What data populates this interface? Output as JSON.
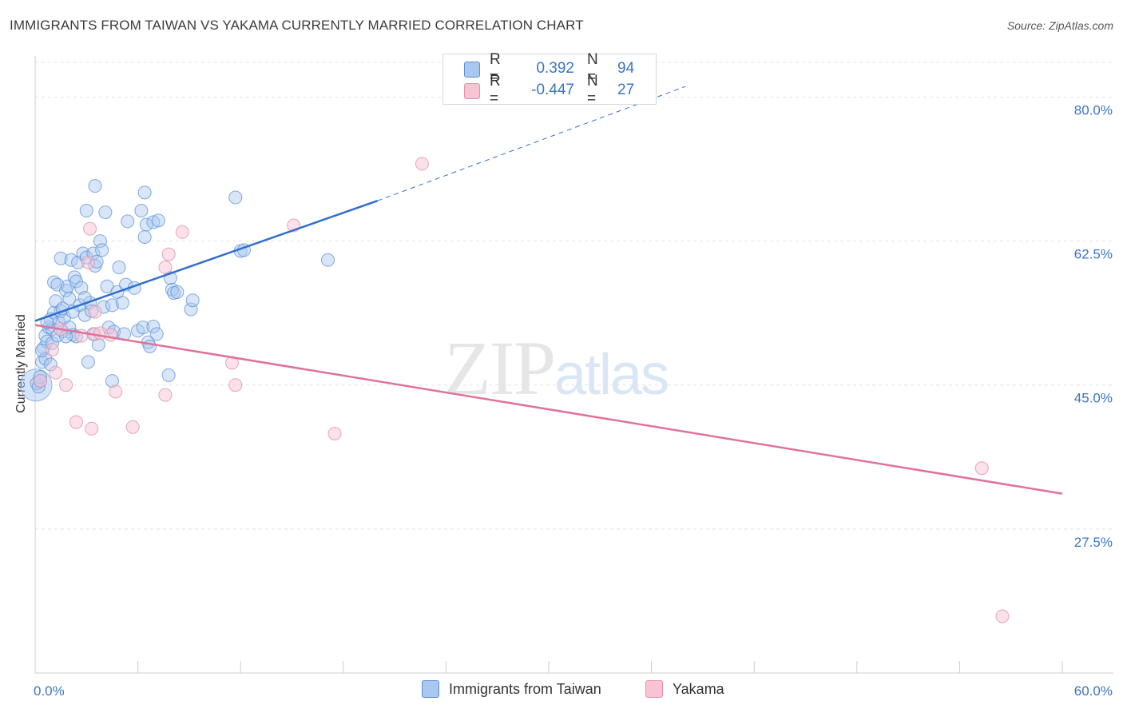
{
  "title": "IMMIGRANTS FROM TAIWAN VS YAKAMA CURRENTLY MARRIED CORRELATION CHART",
  "source": "Source: ZipAtlas.com",
  "watermark": {
    "zip": "ZIP",
    "atlas": "atlas"
  },
  "legend_top": {
    "rows": [
      {
        "r_label": "R =",
        "r_value": "0.392",
        "n_label": "N =",
        "n_value": "94"
      },
      {
        "r_label": "R =",
        "r_value": "-0.447",
        "n_label": "N =",
        "n_value": "27"
      }
    ]
  },
  "legend_bottom": [
    "Immigrants from Taiwan",
    "Yakama"
  ],
  "colors": {
    "blue_fill": "#a9c8f0",
    "blue_stroke": "#5b8fd6",
    "blue_line": "#2f6fcc",
    "pink_fill": "#f8c4d4",
    "pink_stroke": "#e690ab",
    "pink_line": "#e0729a",
    "tick_text": "#3a76c4",
    "grid": "#e4e4e4"
  },
  "chart_data": {
    "type": "scatter",
    "title": "IMMIGRANTS FROM TAIWAN VS YAKAMA CURRENTLY MARRIED CORRELATION CHART",
    "xlabel": "",
    "ylabel": "Currently Married",
    "xlim": [
      0,
      60
    ],
    "ylim": [
      10,
      85
    ],
    "x_tick_labels": [
      "0.0%",
      "60.0%"
    ],
    "y_ticks": [
      27.5,
      45.0,
      62.5,
      80.0
    ],
    "y_tick_labels": [
      "27.5%",
      "45.0%",
      "62.5%",
      "80.0%"
    ],
    "grid": true,
    "series": [
      {
        "name": "Immigrants from Taiwan",
        "r": 0.392,
        "n": 94,
        "trend": {
          "x_start": 0,
          "y_start": 52.8,
          "x_solid_end": 20,
          "y_solid_end": 67.4,
          "x_dash_end": 38,
          "y_dash_end": 81.3
        },
        "points": [
          [
            0.1,
            45.2
          ],
          [
            0.2,
            44.8
          ],
          [
            0.3,
            46.0
          ],
          [
            0.3,
            45.5
          ],
          [
            0.4,
            47.8
          ],
          [
            0.5,
            49.5
          ],
          [
            0.6,
            51.0
          ],
          [
            0.6,
            48.2
          ],
          [
            0.7,
            50.3
          ],
          [
            0.8,
            52.0
          ],
          [
            0.9,
            47.5
          ],
          [
            1.0,
            50.1
          ],
          [
            1.0,
            51.8
          ],
          [
            1.1,
            53.8
          ],
          [
            1.1,
            57.5
          ],
          [
            1.2,
            55.2
          ],
          [
            1.3,
            57.2
          ],
          [
            1.4,
            52.6
          ],
          [
            1.5,
            54.0
          ],
          [
            1.5,
            60.4
          ],
          [
            1.6,
            51.5
          ],
          [
            1.7,
            53.2
          ],
          [
            1.8,
            56.5
          ],
          [
            1.9,
            57.0
          ],
          [
            2.0,
            55.5
          ],
          [
            2.0,
            52.0
          ],
          [
            2.1,
            60.2
          ],
          [
            2.2,
            51.1
          ],
          [
            2.3,
            58.1
          ],
          [
            2.4,
            57.6
          ],
          [
            2.4,
            50.9
          ],
          [
            2.5,
            59.9
          ],
          [
            2.6,
            54.7
          ],
          [
            2.7,
            56.8
          ],
          [
            2.8,
            61.0
          ],
          [
            2.9,
            53.5
          ],
          [
            3.0,
            66.2
          ],
          [
            3.0,
            60.5
          ],
          [
            3.1,
            47.8
          ],
          [
            3.2,
            55.0
          ],
          [
            3.3,
            54.0
          ],
          [
            3.4,
            61.0
          ],
          [
            3.5,
            69.2
          ],
          [
            3.5,
            59.5
          ],
          [
            3.6,
            60.0
          ],
          [
            3.7,
            49.9
          ],
          [
            3.8,
            62.5
          ],
          [
            3.9,
            61.4
          ],
          [
            4.0,
            54.5
          ],
          [
            4.1,
            66.0
          ],
          [
            4.2,
            57.0
          ],
          [
            4.3,
            52.0
          ],
          [
            4.5,
            45.5
          ],
          [
            4.5,
            54.7
          ],
          [
            4.6,
            51.5
          ],
          [
            4.8,
            56.3
          ],
          [
            4.9,
            59.3
          ],
          [
            5.1,
            55.0
          ],
          [
            5.3,
            57.2
          ],
          [
            5.2,
            51.2
          ],
          [
            5.4,
            64.9
          ],
          [
            5.8,
            56.8
          ],
          [
            6.0,
            51.6
          ],
          [
            6.2,
            66.2
          ],
          [
            6.3,
            52.0
          ],
          [
            6.4,
            68.4
          ],
          [
            6.4,
            63.0
          ],
          [
            6.5,
            64.5
          ],
          [
            6.6,
            50.2
          ],
          [
            6.7,
            49.7
          ],
          [
            6.9,
            64.8
          ],
          [
            6.9,
            52.1
          ],
          [
            7.1,
            51.2
          ],
          [
            7.2,
            65.0
          ],
          [
            7.8,
            46.2
          ],
          [
            7.9,
            58.0
          ],
          [
            8.0,
            56.6
          ],
          [
            8.1,
            56.2
          ],
          [
            8.3,
            56.3
          ],
          [
            9.1,
            54.2
          ],
          [
            9.2,
            55.3
          ],
          [
            11.7,
            67.8
          ],
          [
            12.0,
            61.3
          ],
          [
            12.2,
            61.4
          ],
          [
            17.1,
            60.2
          ],
          [
            0.4,
            49.2
          ],
          [
            1.6,
            54.3
          ],
          [
            2.2,
            53.9
          ],
          [
            0.9,
            53.0
          ],
          [
            1.3,
            51.0
          ],
          [
            0.7,
            52.6
          ],
          [
            1.8,
            50.9
          ],
          [
            2.9,
            55.6
          ],
          [
            3.4,
            51.2
          ]
        ]
      },
      {
        "name": "Yakama",
        "r": -0.447,
        "n": 27,
        "trend": {
          "x_start": 0,
          "y_start": 52.3,
          "x_end": 60,
          "y_end": 31.8
        },
        "points": [
          [
            0.3,
            45.5
          ],
          [
            1.0,
            49.3
          ],
          [
            1.2,
            46.5
          ],
          [
            1.5,
            51.8
          ],
          [
            1.8,
            45.0
          ],
          [
            2.4,
            40.5
          ],
          [
            2.7,
            51.0
          ],
          [
            3.1,
            59.9
          ],
          [
            3.2,
            64.0
          ],
          [
            3.3,
            39.7
          ],
          [
            3.5,
            53.9
          ],
          [
            3.5,
            51.2
          ],
          [
            3.8,
            51.3
          ],
          [
            4.4,
            51.1
          ],
          [
            4.7,
            44.2
          ],
          [
            5.7,
            39.9
          ],
          [
            7.6,
            59.3
          ],
          [
            7.6,
            43.8
          ],
          [
            7.8,
            60.9
          ],
          [
            8.6,
            63.6
          ],
          [
            11.5,
            47.7
          ],
          [
            11.7,
            45.0
          ],
          [
            15.1,
            64.4
          ],
          [
            17.5,
            39.1
          ],
          [
            22.6,
            71.9
          ],
          [
            55.3,
            34.9
          ],
          [
            56.5,
            16.9
          ]
        ]
      }
    ]
  }
}
